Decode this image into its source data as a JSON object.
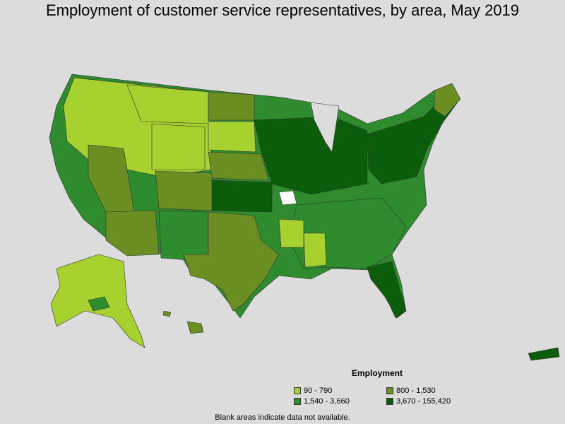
{
  "title": "Employment of customer service representatives, by area, May 2019",
  "legend": {
    "title": "Employment",
    "items": [
      {
        "label": "90 - 790",
        "color": "#a6d12e"
      },
      {
        "label": "800 - 1,530",
        "color": "#6b8e23"
      },
      {
        "label": "1,540 - 3,660",
        "color": "#2e8b2e"
      },
      {
        "label": "3,670 - 155,420",
        "color": "#0b5d0b"
      }
    ]
  },
  "footnote": "Blank areas indicate data not available."
}
